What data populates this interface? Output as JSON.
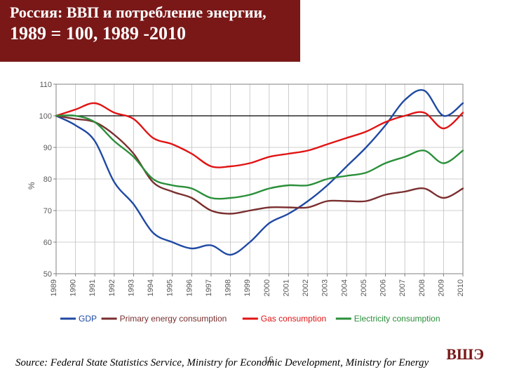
{
  "title": {
    "line1": "Россия: ВВП и потребление энергии,",
    "line2": "1989 = 100, 1989 -2010"
  },
  "chart": {
    "type": "line",
    "background_color": "#ffffff",
    "plot_border_color": "#808080",
    "grid_color": "#bfbfbf",
    "axis_text_color": "#595959",
    "ylabel": "%",
    "xlim": [
      1989,
      2010
    ],
    "ylim": [
      50,
      110
    ],
    "ytick_step": 10,
    "yticks": [
      50,
      60,
      70,
      80,
      90,
      100,
      110
    ],
    "xticks": [
      1989,
      1990,
      1991,
      1992,
      1993,
      1994,
      1995,
      1996,
      1997,
      1998,
      1999,
      2000,
      2001,
      2002,
      2003,
      2004,
      2005,
      2006,
      2007,
      2008,
      2009,
      2010
    ],
    "baseline": {
      "y": 100,
      "color": "#000000",
      "width": 1.2
    },
    "line_width": 2.4,
    "series": [
      {
        "name": "GDP",
        "color": "#1f49a3",
        "legend_label": "GDP",
        "data": [
          100,
          97,
          92,
          79,
          72,
          63,
          60,
          58,
          59,
          56,
          60,
          66,
          69,
          73,
          78,
          84,
          90,
          97,
          105,
          108,
          100,
          104
        ]
      },
      {
        "name": "Primary energy consumption",
        "color": "#7a2f2f",
        "legend_label": "Primary energy consumption",
        "data": [
          100,
          99,
          98,
          94,
          88,
          79,
          76,
          74,
          70,
          69,
          70,
          71,
          71,
          71,
          73,
          73,
          73,
          75,
          76,
          77,
          74,
          77
        ]
      },
      {
        "name": "Gas consumption",
        "color": "#e11313",
        "legend_label": "Gas consumption",
        "data": [
          100,
          102,
          104,
          101,
          99,
          93,
          91,
          88,
          84,
          84,
          85,
          87,
          88,
          89,
          91,
          93,
          95,
          98,
          100,
          101,
          96,
          101
        ]
      },
      {
        "name": "Electricity consumption",
        "color": "#2a8f3a",
        "legend_label": "Electricity consumption",
        "data": [
          100,
          100,
          98,
          92,
          87,
          80,
          78,
          77,
          74,
          74,
          75,
          77,
          78,
          78,
          80,
          81,
          82,
          85,
          87,
          89,
          85,
          89
        ]
      }
    ],
    "legend": {
      "layout": "horizontal",
      "position": "bottom",
      "font_size": 12
    }
  },
  "source": "Source: Federal State Statistics Service, Ministry for Economic Development, Ministry for Energy",
  "page_number": "16",
  "brand": "ВШЭ"
}
